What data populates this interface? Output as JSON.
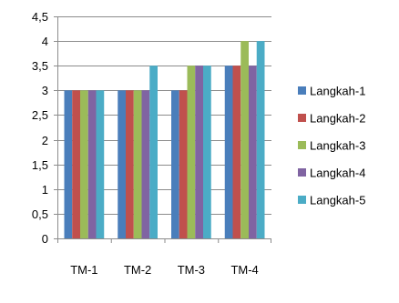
{
  "chart_data": {
    "type": "bar",
    "title": "",
    "xlabel": "",
    "ylabel": "",
    "categories": [
      "TM-1",
      "TM-2",
      "TM-3",
      "TM-4"
    ],
    "ylim": [
      0,
      4.5
    ],
    "yticks": [
      "0",
      "0,5",
      "1",
      "1,5",
      "2",
      "2,5",
      "3",
      "3,5",
      "4",
      "4,5"
    ],
    "grid": true,
    "legend_position": "right",
    "series": [
      {
        "name": "Langkah-1",
        "color": "#4a7ebb",
        "values": [
          3,
          3,
          3,
          3.5
        ]
      },
      {
        "name": "Langkah-2",
        "color": "#c0504d",
        "values": [
          3,
          3,
          3,
          3.5
        ]
      },
      {
        "name": "Langkah-3",
        "color": "#9bbb59",
        "values": [
          3,
          3,
          3.5,
          4
        ]
      },
      {
        "name": "Langkah-4",
        "color": "#8064a2",
        "values": [
          3,
          3,
          3.5,
          3.5
        ]
      },
      {
        "name": "Langkah-5",
        "color": "#4bacc6",
        "values": [
          3,
          3.5,
          3.5,
          4
        ]
      }
    ]
  }
}
